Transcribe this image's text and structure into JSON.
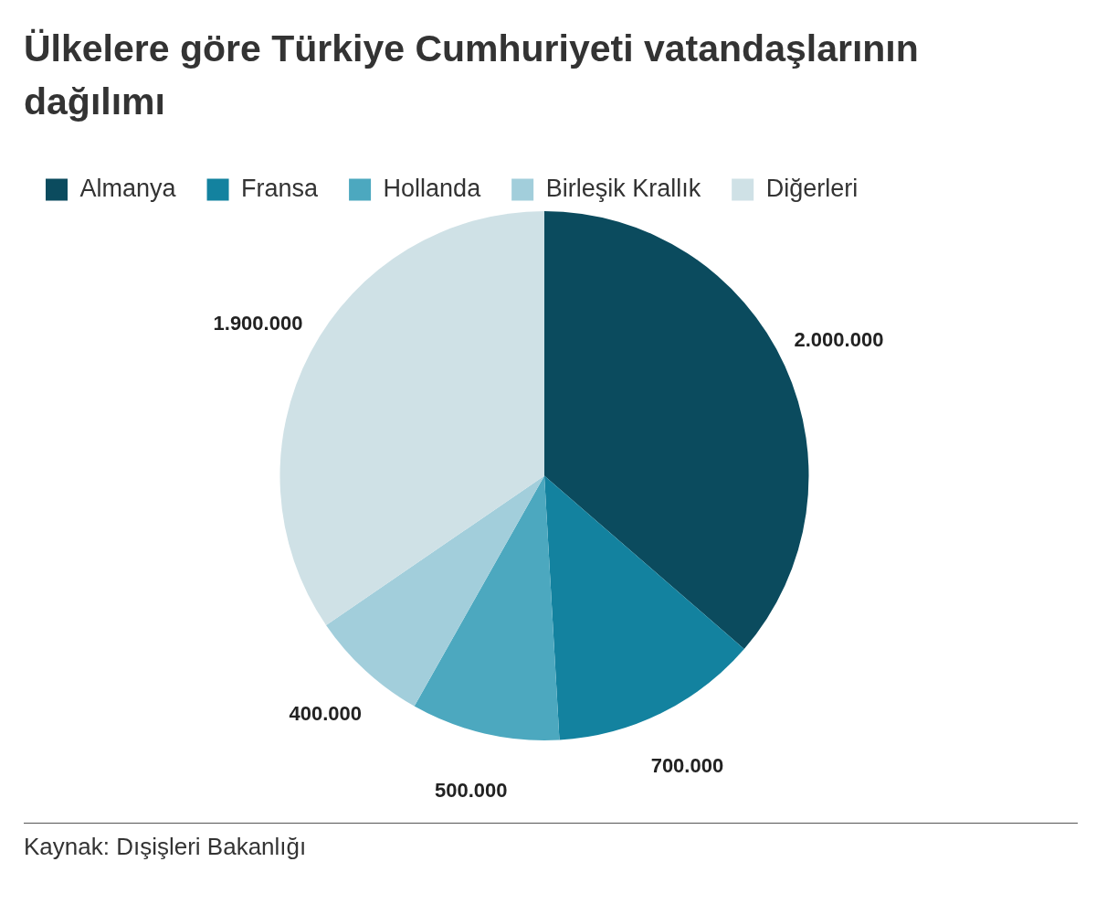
{
  "chart_data": {
    "type": "pie",
    "title": "Ülkelere göre Türkiye Cumhuriyeti vatandaşlarının dağılımı",
    "categories": [
      "Almanya",
      "Fransa",
      "Hollanda",
      "Birleşik Krallık",
      "Diğerleri"
    ],
    "values": [
      2000000,
      700000,
      500000,
      400000,
      1900000
    ],
    "colors": [
      "#0b4b5e",
      "#13829f",
      "#4ca8bf",
      "#a2cedb",
      "#cfe1e6"
    ],
    "value_labels": [
      "2.000.000",
      "700.000",
      "500.000",
      "400.000",
      "1.900.000"
    ],
    "legend": "top left",
    "annotations": [
      "Kaynak: Dışişleri Bakanlığı"
    ]
  }
}
